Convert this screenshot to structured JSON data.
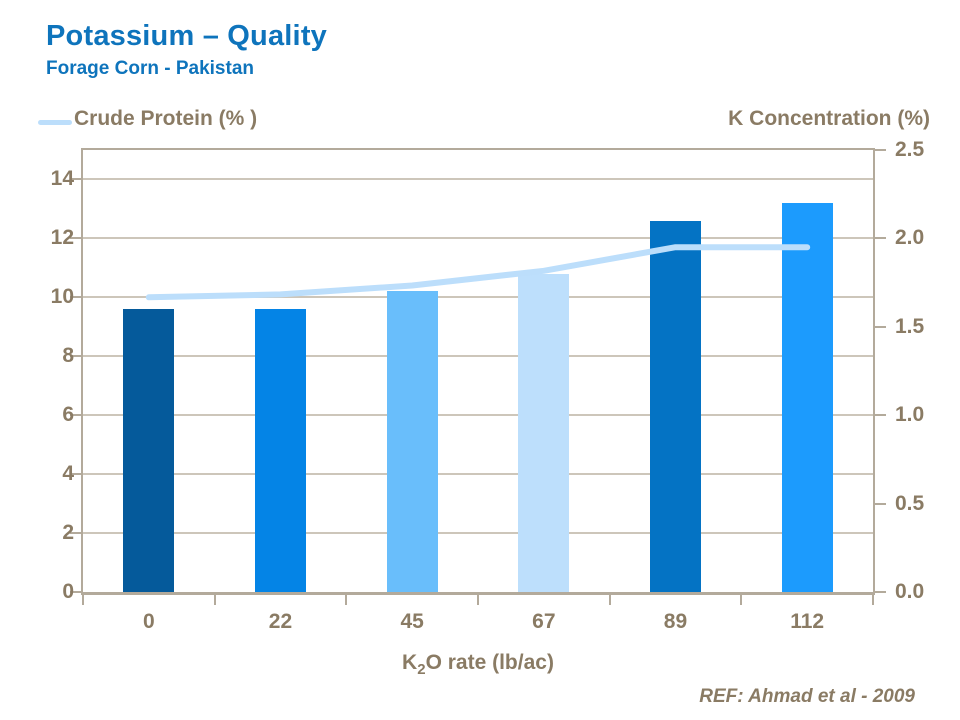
{
  "header": {
    "title": "Potassium – Quality",
    "subtitle": "Forage Corn - Pakistan"
  },
  "legend": {
    "crude_protein_label": "Crude Protein (% )",
    "k_concentration_label": "K Concentration (%)"
  },
  "xaxis": {
    "title_prefix": "K",
    "title_sub": "2",
    "title_suffix": "O rate (lb/ac)"
  },
  "footnote": "REF: Ahmad et al - 2009",
  "colors": {
    "title_blue": "#0E74BC",
    "text_brown": "#8A7B64",
    "grid": "#CDC6BA",
    "frame": "#B3AA9B",
    "line_blue": "#BCDEFB"
  },
  "chart_data": {
    "type": "bar",
    "title": "Potassium – Quality",
    "subtitle": "Forage Corn - Pakistan",
    "categories": [
      "0",
      "22",
      "45",
      "67",
      "89",
      "112"
    ],
    "xlabel": "K2O rate (lb/ac)",
    "grid": true,
    "legend_position": "top-left",
    "series": [
      {
        "name": "K Concentration (%)",
        "type": "bar",
        "axis": "right",
        "values": [
          1.6,
          1.6,
          1.7,
          1.8,
          2.1,
          2.2
        ],
        "bar_colors": [
          "#055A9B",
          "#0484E6",
          "#69BEFB",
          "#BDDFFC",
          "#0473C4",
          "#1C9BFD"
        ]
      },
      {
        "name": "Crude Protein (%)",
        "type": "line",
        "axis": "left",
        "values": [
          10.0,
          10.1,
          10.4,
          10.9,
          11.7,
          11.7
        ],
        "color": "#BCDEFB"
      }
    ],
    "left_axis": {
      "range": [
        0,
        15
      ],
      "tick_values": [
        0,
        2,
        4,
        6,
        8,
        10,
        12,
        14
      ],
      "tick_labels": [
        "0",
        "2",
        "4",
        "6",
        "8",
        "10",
        "12",
        "14"
      ]
    },
    "right_axis": {
      "title": "K Concentration (%)",
      "range": [
        0,
        2.5
      ],
      "tick_values": [
        0,
        0.5,
        1,
        1.5,
        2,
        2.5
      ],
      "tick_labels": [
        "0.0",
        "0.5",
        "1.0",
        "1.5",
        "2.0",
        "2.5"
      ]
    }
  }
}
